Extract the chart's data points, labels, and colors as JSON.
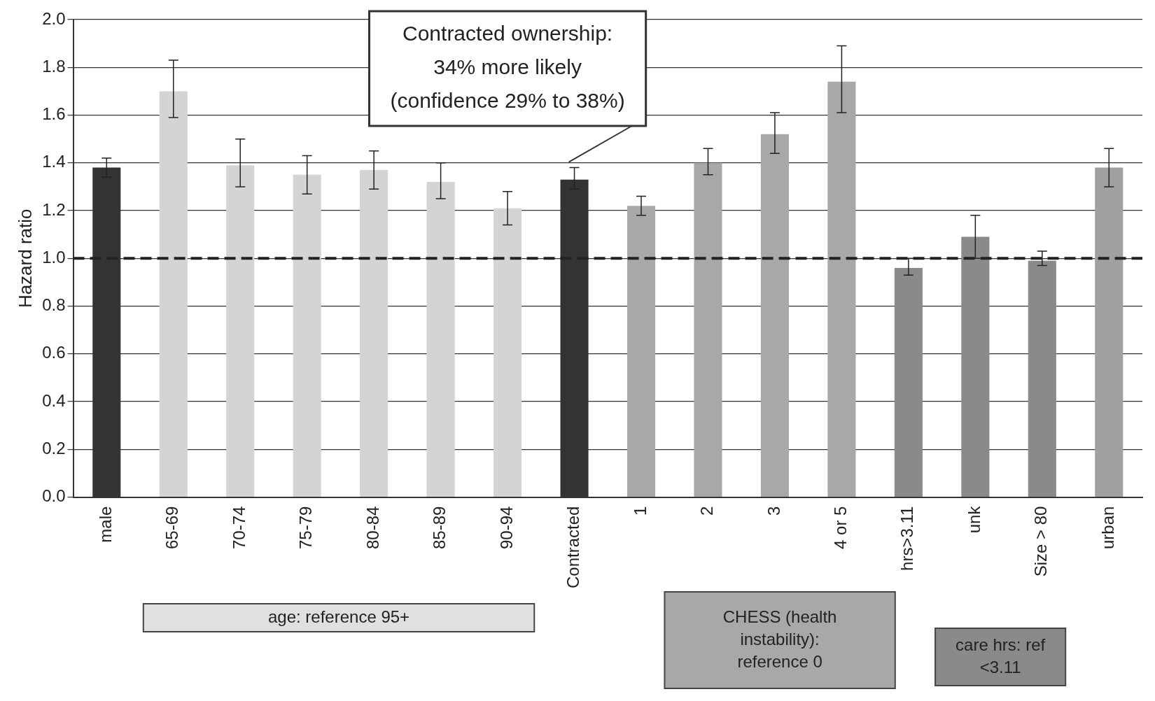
{
  "chart_data": {
    "type": "bar",
    "ylabel": "Hazard ratio",
    "categories": [
      "male",
      "65-69",
      "70-74",
      "75-79",
      "80-84",
      "85-89",
      "90-94",
      "Contracted",
      "1",
      "2",
      "3",
      "4 or 5",
      "hrs>3.11",
      "unk",
      "Size > 80",
      "urban"
    ],
    "values": [
      1.38,
      1.7,
      1.39,
      1.35,
      1.37,
      1.32,
      1.21,
      1.33,
      1.22,
      1.4,
      1.52,
      1.74,
      0.96,
      1.09,
      0.99,
      1.38
    ],
    "errors": [
      [
        1.34,
        1.42
      ],
      [
        1.59,
        1.83
      ],
      [
        1.3,
        1.5
      ],
      [
        1.27,
        1.43
      ],
      [
        1.29,
        1.45
      ],
      [
        1.25,
        1.4
      ],
      [
        1.14,
        1.28
      ],
      [
        1.29,
        1.38
      ],
      [
        1.18,
        1.26
      ],
      [
        1.35,
        1.46
      ],
      [
        1.44,
        1.61
      ],
      [
        1.61,
        1.89
      ],
      [
        0.93,
        1.0
      ],
      [
        1.0,
        1.18
      ],
      [
        0.97,
        1.03
      ],
      [
        1.3,
        1.46
      ]
    ],
    "colors": [
      "#333333",
      "#d4d4d4",
      "#d4d4d4",
      "#d4d4d4",
      "#d4d4d4",
      "#d4d4d4",
      "#d4d4d4",
      "#333333",
      "#a8a8a8",
      "#a8a8a8",
      "#a8a8a8",
      "#a8a8a8",
      "#8a8a8a",
      "#8a8a8a",
      "#8a8a8a",
      "#a0a0a0"
    ],
    "ylim": [
      0,
      2.0
    ],
    "yticks": [
      {
        "value": 0,
        "label": "0.0"
      },
      {
        "value": 0.2,
        "label": "0.2"
      },
      {
        "value": 0.4,
        "label": "0.4"
      },
      {
        "value": 0.6,
        "label": "0.6"
      },
      {
        "value": 0.8,
        "label": "0.8"
      },
      {
        "value": 1.0,
        "label": "1.0"
      },
      {
        "value": 1.2,
        "label": "1.2"
      },
      {
        "value": 1.4,
        "label": "1.4"
      },
      {
        "value": 1.6,
        "label": "1.6"
      },
      {
        "value": 1.8,
        "label": "1.8"
      },
      {
        "value": 2.0,
        "label": "2.0"
      }
    ],
    "grid": "y",
    "legend": false,
    "ref_lines": [
      {
        "axis": "y",
        "value": 1.0,
        "color": "#222222",
        "line_style": "dashed"
      }
    ],
    "annotations": [
      "Contracted ownership:\n34% more likely\n(confidence 29% to 38%)",
      "age: reference 95+",
      "CHESS (health\ninstability):\nreference 0",
      "care hrs: ref\n<3.11"
    ]
  }
}
